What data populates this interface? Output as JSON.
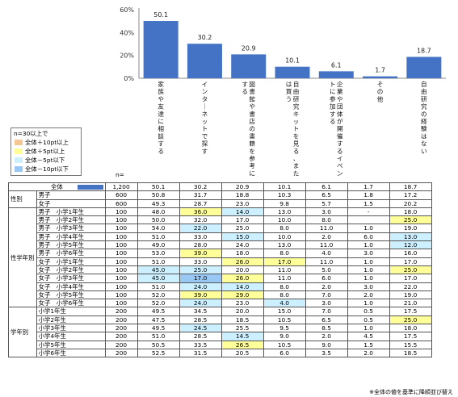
{
  "chart_data": {
    "type": "bar",
    "categories": [
      "家族や友達に相談する",
      "インターネットで探す",
      "図書館や書店の書籍を参考にする",
      "自由研究キットを見る、または買う",
      "企業や団体が開催するイベントに参加する",
      "その他",
      "自由研究の経験はない"
    ],
    "values": [
      50.1,
      30.2,
      20.9,
      10.1,
      6.1,
      1.7,
      18.7
    ],
    "value_labels": [
      "50.1",
      "30.2",
      "20.9",
      "10.1",
      "6.1",
      "1.7",
      "18.7"
    ],
    "ylim": [
      0,
      60
    ],
    "yticks": [
      "0%",
      "20%",
      "40%",
      "60%"
    ],
    "bar_color": "#4472c4",
    "grid": false
  },
  "legend": {
    "title": "n=30以上で",
    "items": [
      {
        "label": "全体＋10pt以上",
        "color": "#f5c893"
      },
      {
        "label": "全体＋5pt以上",
        "color": "#ffff99"
      },
      {
        "label": "全体－5pt以下",
        "color": "#ccf0ff"
      },
      {
        "label": "全体－10pt以下",
        "color": "#99c8f5"
      }
    ]
  },
  "n_label": "n=",
  "footnote": "※全体の値を基準に降順並び替え",
  "table": {
    "total": {
      "label": "全体",
      "n": "1,200",
      "values": [
        "50.1",
        "30.2",
        "20.9",
        "10.1",
        "6.1",
        "1.7",
        "18.7"
      ]
    },
    "groups": [
      {
        "name": "性別",
        "rows": [
          {
            "label": "男子",
            "n": "600",
            "values": [
              "50.8",
              "31.7",
              "18.8",
              "10.3",
              "6.5",
              "1.8",
              "17.2"
            ],
            "hl": [
              "",
              "",
              "",
              "",
              "",
              "",
              ""
            ]
          },
          {
            "label": "女子",
            "n": "600",
            "values": [
              "49.3",
              "28.7",
              "23.0",
              "9.8",
              "5.7",
              "1.5",
              "20.2"
            ],
            "hl": [
              "",
              "",
              "",
              "",
              "",
              "",
              ""
            ]
          }
        ]
      },
      {
        "name": "性学年別",
        "rows": [
          {
            "label": "男子　小学1年生",
            "n": "100",
            "values": [
              "48.0",
              "36.0",
              "14.0",
              "13.0",
              "3.0",
              "-",
              "18.0"
            ],
            "hl": [
              "",
              "c5p",
              "c5m",
              "",
              "",
              "",
              ""
            ]
          },
          {
            "label": "男子　小学2年生",
            "n": "100",
            "values": [
              "50.0",
              "32.0",
              "17.0",
              "10.0",
              "8.0",
              "",
              "25.0"
            ],
            "hl": [
              "",
              "",
              "",
              "",
              "",
              "",
              "c5p"
            ]
          },
          {
            "label": "男子　小学3年生",
            "n": "100",
            "values": [
              "54.0",
              "22.0",
              "25.0",
              "8.0",
              "11.0",
              "1.0",
              "19.0"
            ],
            "hl": [
              "",
              "c5m",
              "",
              "",
              "",
              "",
              ""
            ]
          },
          {
            "label": "男子　小学4年生",
            "n": "100",
            "values": [
              "51.0",
              "33.0",
              "15.0",
              "10.0",
              "2.0",
              "6.0",
              "13.0"
            ],
            "hl": [
              "",
              "",
              "c5m",
              "",
              "",
              "",
              "c5m"
            ]
          },
          {
            "label": "男子　小学5年生",
            "n": "100",
            "values": [
              "49.0",
              "28.0",
              "24.0",
              "13.0",
              "11.0",
              "1.0",
              "12.0"
            ],
            "hl": [
              "",
              "",
              "",
              "",
              "",
              "",
              "c5m"
            ]
          },
          {
            "label": "男子　小学6年生",
            "n": "100",
            "values": [
              "53.0",
              "39.0",
              "18.0",
              "8.0",
              "4.0",
              "3.0",
              "16.0"
            ],
            "hl": [
              "",
              "c5p",
              "",
              "",
              "",
              "",
              ""
            ]
          },
          {
            "label": "女子　小学1年生",
            "n": "100",
            "values": [
              "51.0",
              "33.0",
              "26.0",
              "17.0",
              "11.0",
              "1.0",
              "17.0"
            ],
            "hl": [
              "",
              "",
              "c5p",
              "c5p",
              "",
              "",
              ""
            ]
          },
          {
            "label": "女子　小学2年生",
            "n": "100",
            "values": [
              "45.0",
              "25.0",
              "20.0",
              "11.0",
              "5.0",
              "1.0",
              "25.0"
            ],
            "hl": [
              "c5m",
              "c5m",
              "",
              "",
              "",
              "",
              "c5p"
            ]
          },
          {
            "label": "女子　小学3年生",
            "n": "100",
            "values": [
              "45.0",
              "17.0",
              "26.0",
              "11.0",
              "6.0",
              "1.0",
              "17.0"
            ],
            "hl": [
              "c5m",
              "c10m",
              "c5p",
              "",
              "",
              "",
              ""
            ]
          },
          {
            "label": "女子　小学4年生",
            "n": "100",
            "values": [
              "51.0",
              "24.0",
              "14.0",
              "8.0",
              "2.0",
              "3.0",
              "22.0"
            ],
            "hl": [
              "",
              "c5m",
              "c5m",
              "",
              "",
              "",
              ""
            ]
          },
          {
            "label": "女子　小学5年生",
            "n": "100",
            "values": [
              "52.0",
              "39.0",
              "29.0",
              "8.0",
              "7.0",
              "2.0",
              "19.0"
            ],
            "hl": [
              "",
              "c5p",
              "c5p",
              "",
              "",
              "",
              ""
            ]
          },
          {
            "label": "女子　小学6年生",
            "n": "100",
            "values": [
              "52.0",
              "24.0",
              "23.0",
              "4.0",
              "3.0",
              "1.0",
              "21.0"
            ],
            "hl": [
              "",
              "c5m",
              "",
              "c5m",
              "",
              "",
              ""
            ]
          }
        ]
      },
      {
        "name": "学年別",
        "rows": [
          {
            "label": "小学1年生",
            "n": "200",
            "values": [
              "49.5",
              "34.5",
              "20.0",
              "15.0",
              "7.0",
              "0.5",
              "17.5"
            ],
            "hl": [
              "",
              "",
              "",
              "",
              "",
              "",
              ""
            ]
          },
          {
            "label": "小学2年生",
            "n": "200",
            "values": [
              "47.5",
              "28.5",
              "18.5",
              "10.5",
              "6.5",
              "0.5",
              "25.0"
            ],
            "hl": [
              "",
              "",
              "",
              "",
              "",
              "",
              "c5p"
            ]
          },
          {
            "label": "小学3年生",
            "n": "200",
            "values": [
              "49.5",
              "24.5",
              "25.5",
              "9.5",
              "8.5",
              "1.0",
              "18.0"
            ],
            "hl": [
              "",
              "c5m",
              "",
              "",
              "",
              "",
              ""
            ]
          },
          {
            "label": "小学4年生",
            "n": "200",
            "values": [
              "51.0",
              "28.5",
              "14.5",
              "9.0",
              "2.0",
              "4.5",
              "17.5"
            ],
            "hl": [
              "",
              "",
              "c5m",
              "",
              "",
              "",
              ""
            ]
          },
          {
            "label": "小学5年生",
            "n": "200",
            "values": [
              "50.5",
              "33.5",
              "26.5",
              "10.5",
              "9.0",
              "1.5",
              "15.5"
            ],
            "hl": [
              "",
              "",
              "c5p",
              "",
              "",
              "",
              ""
            ]
          },
          {
            "label": "小学6年生",
            "n": "200",
            "values": [
              "52.5",
              "31.5",
              "20.5",
              "6.0",
              "3.5",
              "2.0",
              "18.5"
            ],
            "hl": [
              "",
              "",
              "",
              "",
              "",
              "",
              ""
            ]
          }
        ]
      }
    ]
  }
}
